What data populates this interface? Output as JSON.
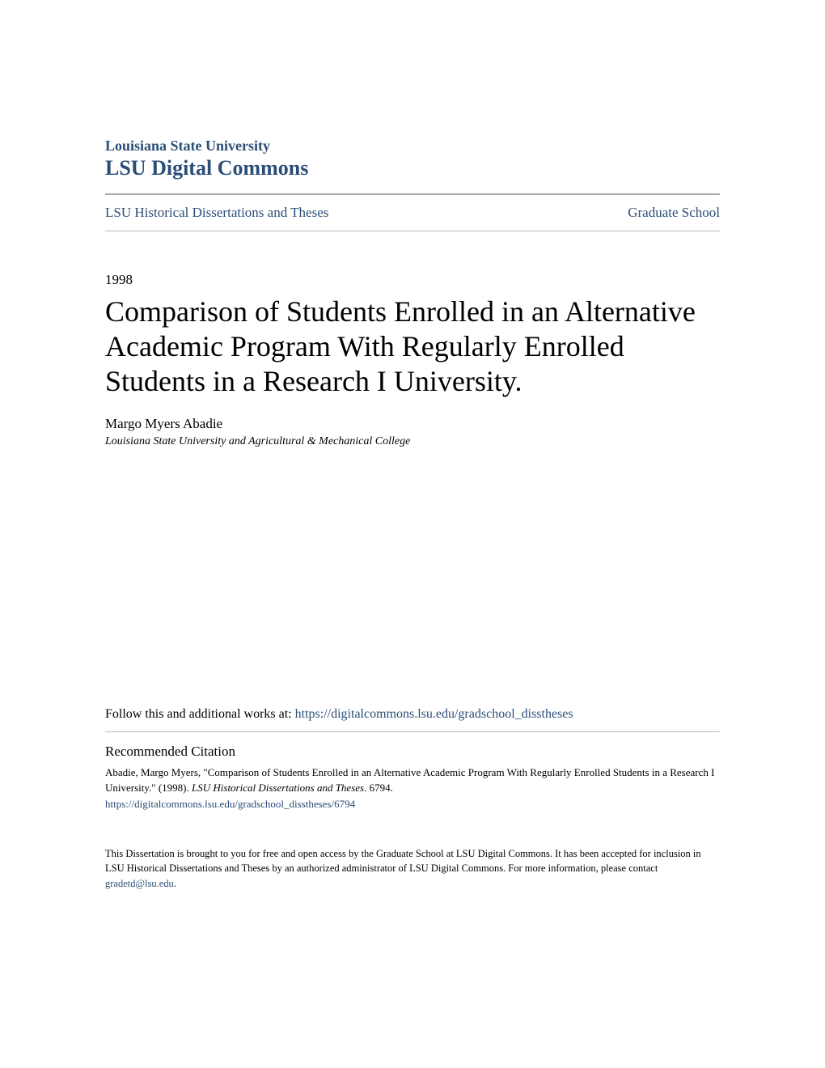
{
  "header": {
    "university": "Louisiana State University",
    "site_name": "LSU Digital Commons"
  },
  "nav": {
    "left": "LSU Historical Dissertations and Theses",
    "right": "Graduate School"
  },
  "paper": {
    "year": "1998",
    "title": "Comparison of Students Enrolled in an Alternative Academic Program With Regularly Enrolled Students in a Research I University.",
    "author": "Margo Myers Abadie",
    "affiliation": "Louisiana State University and Agricultural & Mechanical College"
  },
  "follow": {
    "prefix": "Follow this and additional works at: ",
    "url": "https://digitalcommons.lsu.edu/gradschool_disstheses"
  },
  "citation": {
    "heading": "Recommended Citation",
    "text_part1": "Abadie, Margo Myers, \"Comparison of Students Enrolled in an Alternative Academic Program With Regularly Enrolled Students in a Research I University.\" (1998). ",
    "text_italic": "LSU Historical Dissertations and Theses",
    "text_part2": ". 6794.",
    "url": "https://digitalcommons.lsu.edu/gradschool_disstheses/6794"
  },
  "footer": {
    "text": "This Dissertation is brought to you for free and open access by the Graduate School at LSU Digital Commons. It has been accepted for inclusion in LSU Historical Dissertations and Theses by an authorized administrator of LSU Digital Commons. For more information, please contact ",
    "email": "gradetd@lsu.edu",
    "suffix": "."
  }
}
